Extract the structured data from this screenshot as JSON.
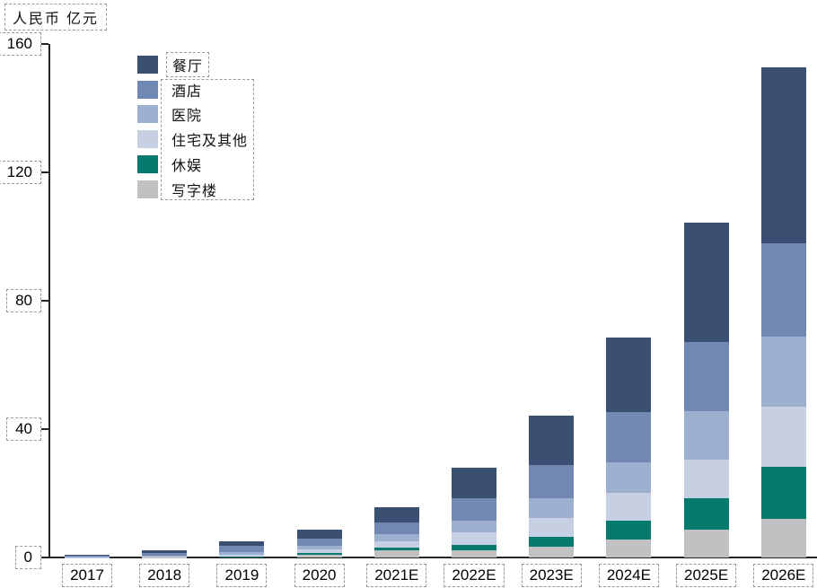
{
  "chart_data": {
    "type": "bar",
    "stacked": true,
    "title": "",
    "unit_label": "人民币 亿元",
    "categories": [
      "2017",
      "2018",
      "2019",
      "2020",
      "2021E",
      "2022E",
      "2023E",
      "2024E",
      "2025E",
      "2026E"
    ],
    "series": [
      {
        "name": "餐厅",
        "color": "#3b4f72",
        "values": [
          0.3,
          0.6,
          1.4,
          3.0,
          4.9,
          9.5,
          15.3,
          23.4,
          37.0,
          54.6
        ]
      },
      {
        "name": "酒店",
        "color": "#7189b2",
        "values": [
          0.3,
          1.0,
          1.9,
          2.3,
          3.7,
          6.9,
          10.4,
          15.5,
          21.5,
          29.2
        ]
      },
      {
        "name": "医院",
        "color": "#9db0cf",
        "values": [
          0.1,
          0.25,
          0.8,
          1.1,
          2.1,
          3.8,
          6.1,
          9.5,
          15.3,
          21.8
        ]
      },
      {
        "name": "住宅及其他",
        "color": "#c7d0e2",
        "values": [
          0.05,
          0.1,
          0.4,
          0.9,
          2.0,
          3.9,
          6.0,
          8.8,
          12.0,
          18.8
        ]
      },
      {
        "name": "休娱",
        "color": "#067a6c",
        "values": [
          0.02,
          0.05,
          0.1,
          0.6,
          0.9,
          1.8,
          2.9,
          5.8,
          9.7,
          16.2
        ]
      },
      {
        "name": "写字楼",
        "color": "#bfc1c3",
        "values": [
          0.03,
          0.1,
          0.3,
          0.9,
          2.2,
          2.1,
          3.4,
          5.6,
          8.7,
          12.0
        ]
      }
    ],
    "stack_order": "legend reversed (写字楼 at bottom, 餐厅 on top)",
    "ylim": [
      0,
      160
    ],
    "yticks": [
      0,
      40,
      80,
      120,
      160
    ],
    "xlabel": "",
    "ylabel": "人民币 亿元",
    "grid": false,
    "legend_position": "upper-left",
    "axis_color": "#262626"
  }
}
